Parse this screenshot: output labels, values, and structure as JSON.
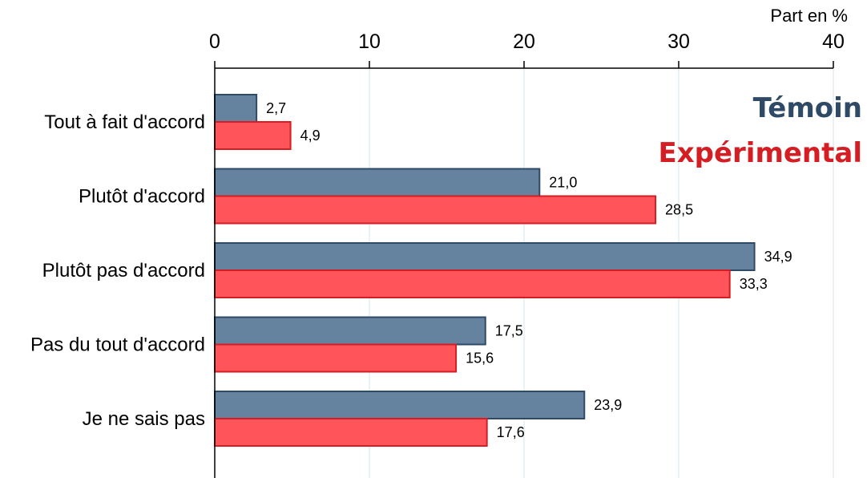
{
  "chart_data": {
    "type": "bar",
    "orientation": "horizontal",
    "categories": [
      "Tout à fait d'accord",
      "Plutôt d'accord",
      "Plutôt pas d'accord",
      "Pas du tout d'accord",
      "Je ne sais pas"
    ],
    "series": [
      {
        "name": "Témoin",
        "values": [
          2.7,
          21.0,
          34.9,
          17.5,
          23.9
        ],
        "labels": [
          "2,7",
          "21,0",
          "34,9",
          "17,5",
          "23,9"
        ],
        "color": "#65829E",
        "stroke": "#2F4A66"
      },
      {
        "name": "Expérimental",
        "values": [
          4.9,
          28.5,
          33.3,
          15.6,
          17.6
        ],
        "labels": [
          "4,9",
          "28,5",
          "33,3",
          "15,6",
          "17,6"
        ],
        "color": "#FF5459",
        "stroke": "#D41E24"
      }
    ],
    "xlabel": "Part en %",
    "xlim": [
      0,
      40
    ],
    "xticks": [
      "0",
      "10",
      "20",
      "30",
      "40"
    ],
    "xaxis_position": "top",
    "grid": "vertical",
    "legend": {
      "placement": "top-right",
      "entries": [
        "Témoin",
        "Expérimental"
      ],
      "colors": [
        "#2F4A66",
        "#D41E24"
      ]
    }
  }
}
